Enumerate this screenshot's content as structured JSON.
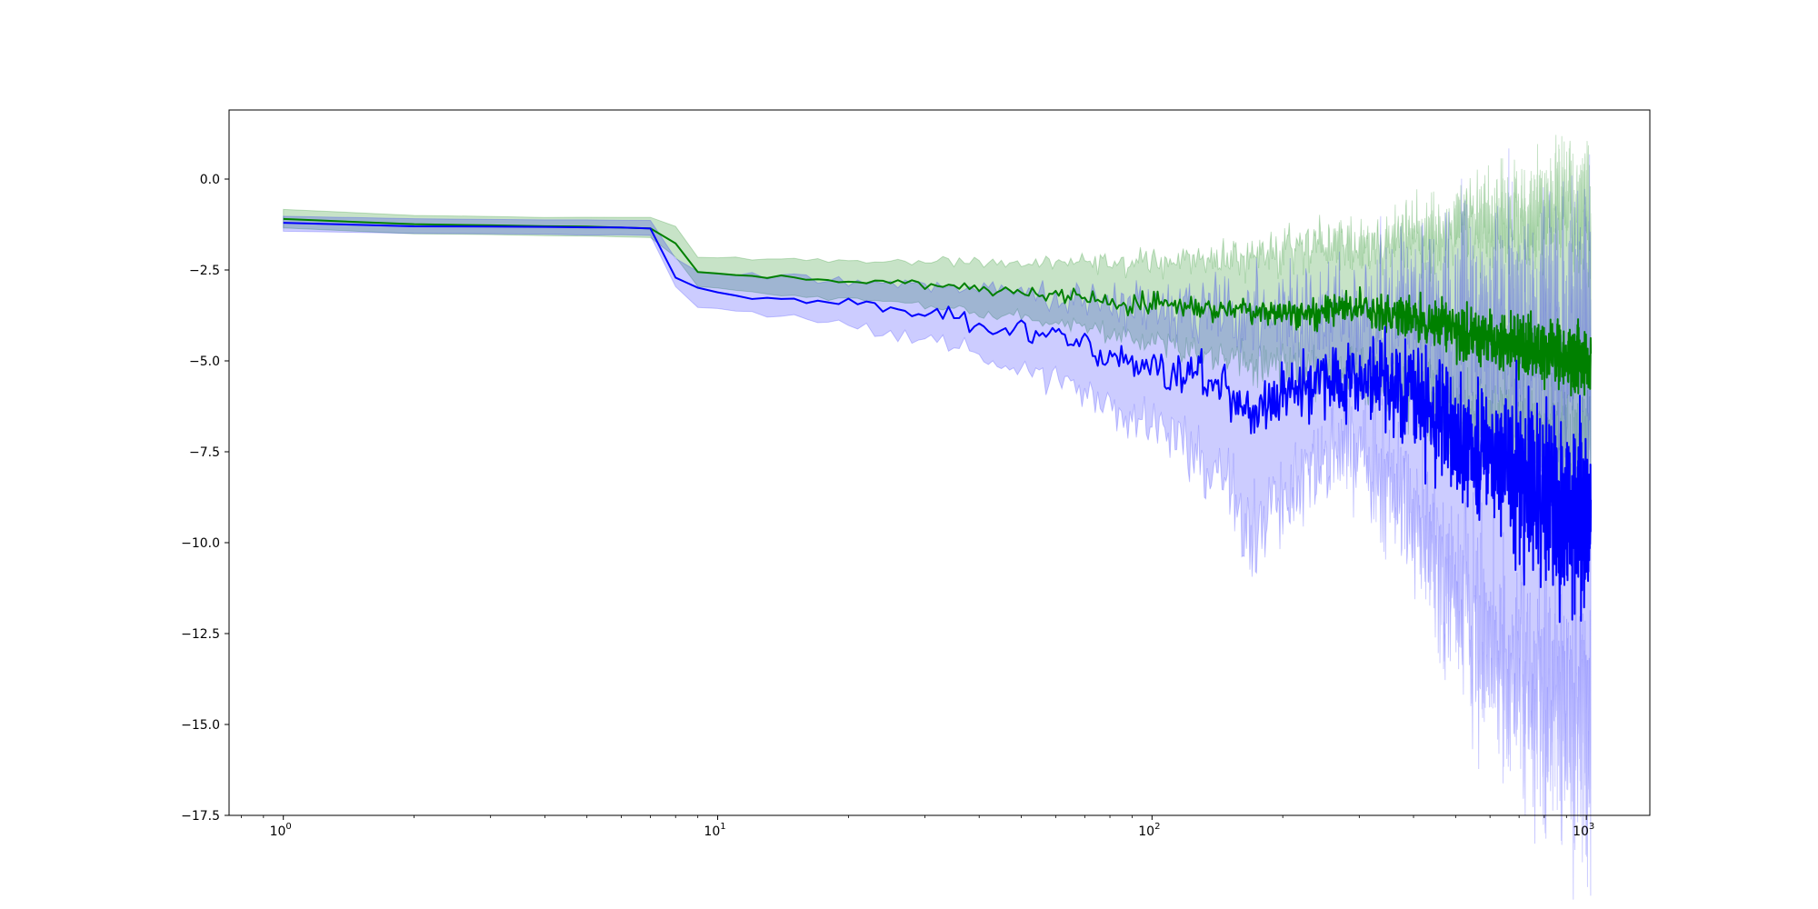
{
  "chart_data": {
    "type": "line",
    "title": "",
    "xlabel": "",
    "ylabel": "",
    "x_scale": "log",
    "xlim": [
      0.75,
      1400
    ],
    "ylim": [
      -17.5,
      1.9
    ],
    "grid": false,
    "x_ticks": [
      {
        "value": 1,
        "base": "10",
        "exp": "0"
      },
      {
        "value": 10,
        "base": "10",
        "exp": "1"
      },
      {
        "value": 100,
        "base": "10",
        "exp": "2"
      },
      {
        "value": 1000,
        "base": "10",
        "exp": "3"
      }
    ],
    "y_ticks": [
      {
        "value": 0.0,
        "label": "0.0"
      },
      {
        "value": -2.5,
        "label": "−2.5"
      },
      {
        "value": -5.0,
        "label": "−5.0"
      },
      {
        "value": -7.5,
        "label": "−7.5"
      },
      {
        "value": -10.0,
        "label": "−10.0"
      },
      {
        "value": -12.5,
        "label": "−12.5"
      },
      {
        "value": -15.0,
        "label": "−15.0"
      },
      {
        "value": -17.5,
        "label": "−17.5"
      }
    ],
    "series": [
      {
        "color": "#008000",
        "band_color": "#008000",
        "band_opacity": 0.22,
        "x": [
          1,
          2,
          4,
          7,
          8,
          9,
          12,
          20,
          30,
          40,
          60,
          80,
          100,
          150,
          200,
          300,
          400,
          500,
          700,
          1000
        ],
        "mean": [
          -1.1,
          -1.25,
          -1.3,
          -1.35,
          -1.75,
          -2.55,
          -2.7,
          -2.8,
          -2.9,
          -3.0,
          -3.2,
          -3.35,
          -3.4,
          -3.55,
          -3.6,
          -3.6,
          -3.8,
          -4.2,
          -4.6,
          -5.0
        ],
        "upper": [
          -0.85,
          -1.0,
          -1.05,
          -1.05,
          -1.3,
          -2.15,
          -2.2,
          -2.25,
          -2.25,
          -2.3,
          -2.3,
          -2.3,
          -2.3,
          -2.2,
          -2.0,
          -1.9,
          -1.6,
          -1.2,
          -1.0,
          -0.8
        ],
        "lower": [
          -1.35,
          -1.5,
          -1.55,
          -1.6,
          -2.15,
          -2.95,
          -3.1,
          -3.3,
          -3.5,
          -3.65,
          -3.95,
          -4.25,
          -4.45,
          -5.0,
          -5.2,
          -5.5,
          -5.9,
          -6.5,
          -7.0,
          -7.5
        ],
        "noise": [
          0.01,
          0.01,
          0.01,
          0.01,
          0.01,
          0.02,
          0.03,
          0.05,
          0.06,
          0.07,
          0.09,
          0.12,
          0.15,
          0.18,
          0.22,
          0.25,
          0.3,
          0.35,
          0.4,
          0.45
        ],
        "band_noise": [
          0.01,
          0.01,
          0.01,
          0.01,
          0.01,
          0.02,
          0.03,
          0.05,
          0.06,
          0.07,
          0.1,
          0.15,
          0.2,
          0.25,
          0.35,
          0.4,
          0.5,
          0.6,
          0.7,
          0.9
        ]
      },
      {
        "color": "#0000ff",
        "band_color": "#0000ff",
        "band_opacity": 0.2,
        "x": [
          1,
          2,
          4,
          7,
          8,
          9,
          12,
          20,
          30,
          40,
          60,
          80,
          100,
          150,
          170,
          200,
          250,
          300,
          400,
          500,
          700,
          1000
        ],
        "mean": [
          -1.2,
          -1.3,
          -1.32,
          -1.35,
          -2.7,
          -3.05,
          -3.25,
          -3.4,
          -3.7,
          -4.0,
          -4.4,
          -4.8,
          -5.0,
          -5.8,
          -6.5,
          -5.9,
          -5.5,
          -5.5,
          -6.0,
          -7.0,
          -8.2,
          -9.5
        ],
        "upper": [
          -1.0,
          -1.1,
          -1.12,
          -1.15,
          -2.2,
          -2.55,
          -2.65,
          -2.8,
          -2.9,
          -3.0,
          -3.2,
          -3.4,
          -3.5,
          -3.7,
          -3.8,
          -3.7,
          -3.6,
          -3.6,
          -3.7,
          -3.9,
          -4.0,
          -4.0
        ],
        "lower": [
          -1.45,
          -1.5,
          -1.52,
          -1.55,
          -2.95,
          -3.5,
          -3.7,
          -4.0,
          -4.4,
          -4.8,
          -5.5,
          -6.2,
          -6.8,
          -8.3,
          -9.9,
          -8.8,
          -7.6,
          -7.6,
          -9.0,
          -11.5,
          -13.5,
          -15.0
        ],
        "noise": [
          0.01,
          0.01,
          0.01,
          0.01,
          0.01,
          0.03,
          0.05,
          0.08,
          0.12,
          0.15,
          0.2,
          0.25,
          0.3,
          0.35,
          0.35,
          0.45,
          0.5,
          0.55,
          0.7,
          0.9,
          1.1,
          1.3
        ],
        "band_noise": [
          0.01,
          0.01,
          0.01,
          0.01,
          0.01,
          0.03,
          0.05,
          0.08,
          0.12,
          0.15,
          0.25,
          0.35,
          0.45,
          0.6,
          0.6,
          0.7,
          0.8,
          0.9,
          1.1,
          1.5,
          1.7,
          1.9
        ]
      }
    ]
  }
}
